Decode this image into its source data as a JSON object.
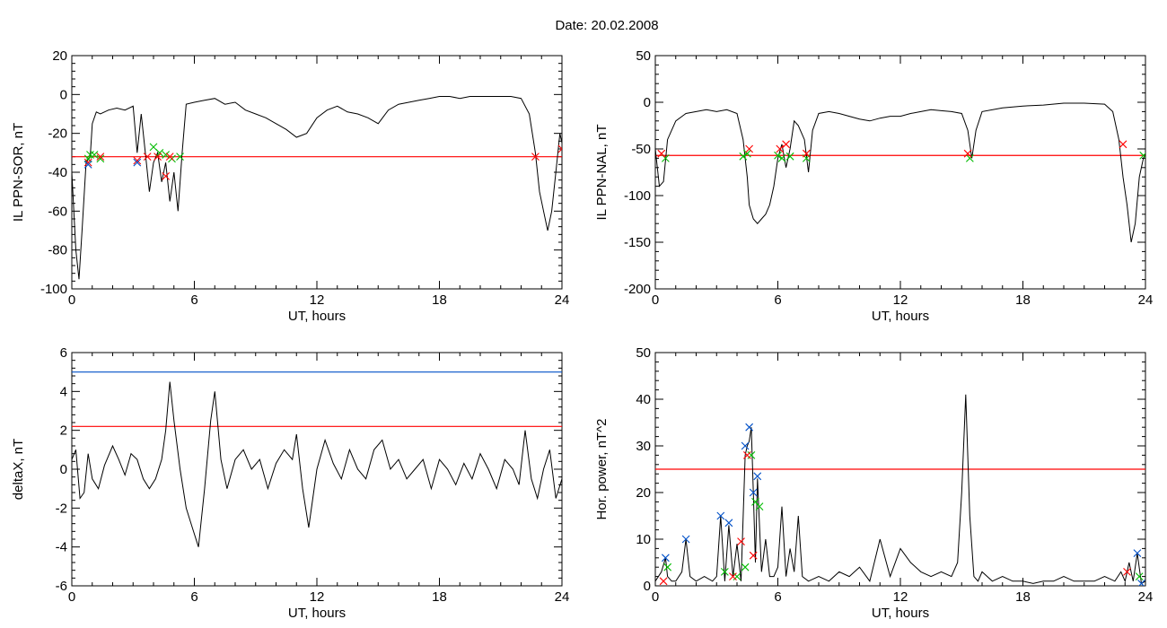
{
  "suptitle": "Date:  20.02.2008",
  "colors": {
    "trace": "#000000",
    "threshold_red": "#ff0000",
    "threshold_blue": "#0050c8",
    "marker_green": "#00bb00",
    "marker_red": "#ff0000",
    "marker_blue": "#0050c8"
  },
  "chart_data": [
    {
      "type": "line",
      "xlabel": "UT, hours",
      "ylabel": "IL PPN-SOR, nT",
      "xlim": [
        0,
        24
      ],
      "ylim": [
        -100,
        20
      ],
      "xticks": [
        0,
        6,
        12,
        18,
        24
      ],
      "yticks": [
        -100,
        -80,
        -60,
        -40,
        -20,
        0,
        20
      ],
      "grid": false,
      "thresholds": [
        {
          "y": -32,
          "color": "red"
        }
      ],
      "series": [
        {
          "x": [
            0,
            0.2,
            0.35,
            0.5,
            0.7,
            0.9,
            1.0,
            1.2,
            1.4,
            1.8,
            2.2,
            2.6,
            3.0,
            3.2,
            3.4,
            3.6,
            3.8,
            4.0,
            4.2,
            4.4,
            4.6,
            4.8,
            5.0,
            5.2,
            5.4,
            5.6,
            6.0,
            6.5,
            7.0,
            7.5,
            8.0,
            8.5,
            9.0,
            9.5,
            10.0,
            10.5,
            11.0,
            11.5,
            12.0,
            12.5,
            13.0,
            13.5,
            14.0,
            14.5,
            15.0,
            15.5,
            16.0,
            16.5,
            17.0,
            17.5,
            18.0,
            18.5,
            19.0,
            19.5,
            20.0,
            20.5,
            21.0,
            21.5,
            22.0,
            22.4,
            22.7,
            22.9,
            23.1,
            23.3,
            23.5,
            23.7,
            23.9,
            24.0
          ],
          "y": [
            -40,
            -80,
            -95,
            -70,
            -35,
            -32,
            -15,
            -9,
            -10,
            -8,
            -7,
            -8,
            -6,
            -30,
            -10,
            -30,
            -50,
            -35,
            -30,
            -45,
            -35,
            -55,
            -40,
            -60,
            -30,
            -5,
            -4,
            -3,
            -2,
            -5,
            -4,
            -8,
            -10,
            -12,
            -15,
            -18,
            -22,
            -20,
            -12,
            -8,
            -6,
            -9,
            -10,
            -12,
            -15,
            -8,
            -5,
            -4,
            -3,
            -2,
            -1,
            -1,
            -2,
            -1,
            -1,
            -1,
            -1,
            -1,
            -2,
            -10,
            -30,
            -50,
            -60,
            -70,
            -60,
            -40,
            -20,
            -25
          ]
        }
      ],
      "markers": [
        {
          "symbol": "x",
          "color": "green",
          "x": [
            0.8,
            0.9,
            1.1,
            1.4,
            4.0,
            4.3,
            4.6,
            4.9,
            5.3
          ],
          "y": [
            -33,
            -31,
            -31,
            -33,
            -27,
            -30,
            -31,
            -33,
            -32
          ]
        },
        {
          "symbol": "x",
          "color": "red",
          "x": [
            0.8,
            1.4,
            3.2,
            3.7,
            4.2,
            4.6,
            4.8,
            22.7,
            24.0
          ],
          "y": [
            -35,
            -32,
            -34,
            -32,
            -32,
            -42,
            -32,
            -32,
            -28
          ]
        },
        {
          "symbol": "x",
          "color": "blue",
          "x": [
            0.8,
            3.2
          ],
          "y": [
            -36,
            -35
          ]
        }
      ]
    },
    {
      "type": "line",
      "xlabel": "UT, hours",
      "ylabel": "IL PPN-NAL, nT",
      "xlim": [
        0,
        24
      ],
      "ylim": [
        -200,
        50
      ],
      "xticks": [
        0,
        6,
        12,
        18,
        24
      ],
      "yticks": [
        -200,
        -150,
        -100,
        -50,
        0,
        50
      ],
      "grid": false,
      "thresholds": [
        {
          "y": -57,
          "color": "red"
        }
      ],
      "series": [
        {
          "x": [
            0,
            0.2,
            0.4,
            0.6,
            0.8,
            1.0,
            1.5,
            2.0,
            2.5,
            3.0,
            3.5,
            4.0,
            4.3,
            4.5,
            4.6,
            4.8,
            5.0,
            5.2,
            5.4,
            5.6,
            5.8,
            6.0,
            6.2,
            6.4,
            6.6,
            6.8,
            7.0,
            7.3,
            7.5,
            7.7,
            8.0,
            8.5,
            9.0,
            9.5,
            10.0,
            10.5,
            11.0,
            11.5,
            12.0,
            12.5,
            13.0,
            13.5,
            14.0,
            14.5,
            15.0,
            15.3,
            15.5,
            15.7,
            16.0,
            17.0,
            18.0,
            19.0,
            20.0,
            21.0,
            22.0,
            22.4,
            22.7,
            22.9,
            23.1,
            23.3,
            23.5,
            23.7,
            23.9,
            24.0
          ],
          "y": [
            -50,
            -90,
            -85,
            -40,
            -30,
            -20,
            -12,
            -10,
            -8,
            -10,
            -8,
            -12,
            -40,
            -80,
            -110,
            -125,
            -130,
            -125,
            -120,
            -110,
            -90,
            -60,
            -45,
            -70,
            -50,
            -20,
            -25,
            -40,
            -75,
            -30,
            -12,
            -10,
            -12,
            -15,
            -18,
            -20,
            -17,
            -15,
            -15,
            -12,
            -10,
            -8,
            -9,
            -10,
            -12,
            -30,
            -60,
            -30,
            -10,
            -6,
            -4,
            -3,
            -1,
            -1,
            -2,
            -10,
            -40,
            -80,
            -110,
            -150,
            -130,
            -80,
            -60,
            -55
          ]
        }
      ],
      "markers": [
        {
          "symbol": "x",
          "color": "green",
          "x": [
            0.5,
            4.3,
            4.5,
            6.0,
            6.2,
            6.6,
            7.4,
            15.4,
            23.9
          ],
          "y": [
            -60,
            -58,
            -55,
            -57,
            -60,
            -58,
            -60,
            -60,
            -57
          ]
        },
        {
          "symbol": "x",
          "color": "red",
          "x": [
            0.3,
            4.6,
            6.1,
            6.4,
            7.4,
            15.3,
            22.9
          ],
          "y": [
            -55,
            -50,
            -50,
            -45,
            -55,
            -55,
            -45
          ]
        }
      ]
    },
    {
      "type": "line",
      "xlabel": "UT, hours",
      "ylabel": "deltaX, nT",
      "xlim": [
        0,
        24
      ],
      "ylim": [
        -6,
        6
      ],
      "xticks": [
        0,
        6,
        12,
        18,
        24
      ],
      "yticks": [
        -6,
        -4,
        -2,
        0,
        2,
        4,
        6
      ],
      "grid": false,
      "thresholds": [
        {
          "y": 5.0,
          "color": "blue"
        },
        {
          "y": 2.2,
          "color": "red"
        }
      ],
      "series": [
        {
          "x": [
            0,
            0.2,
            0.4,
            0.6,
            0.8,
            1.0,
            1.3,
            1.6,
            2.0,
            2.3,
            2.6,
            2.9,
            3.2,
            3.5,
            3.8,
            4.1,
            4.4,
            4.6,
            4.8,
            5.0,
            5.3,
            5.6,
            5.9,
            6.2,
            6.5,
            6.8,
            7.0,
            7.3,
            7.6,
            8.0,
            8.4,
            8.8,
            9.2,
            9.6,
            10.0,
            10.4,
            10.8,
            11.0,
            11.3,
            11.6,
            12.0,
            12.4,
            12.8,
            13.2,
            13.6,
            14.0,
            14.4,
            14.8,
            15.2,
            15.6,
            16.0,
            16.4,
            16.8,
            17.2,
            17.6,
            18.0,
            18.4,
            18.8,
            19.2,
            19.6,
            20.0,
            20.4,
            20.8,
            21.2,
            21.6,
            21.9,
            22.2,
            22.5,
            22.8,
            23.1,
            23.4,
            23.7,
            24.0
          ],
          "y": [
            0.5,
            1.0,
            -1.5,
            -1.2,
            0.8,
            -0.5,
            -1.0,
            0.2,
            1.2,
            0.5,
            -0.3,
            0.8,
            0.5,
            -0.5,
            -1.0,
            -0.5,
            0.5,
            2.0,
            4.5,
            2.5,
            0.0,
            -2.0,
            -3.0,
            -4.0,
            -1.0,
            2.5,
            4.0,
            0.5,
            -1.0,
            0.5,
            1.0,
            0.0,
            0.5,
            -1.0,
            0.3,
            1.0,
            0.5,
            1.8,
            -1.0,
            -3.0,
            0.0,
            1.5,
            0.3,
            -0.5,
            1.0,
            0.0,
            -0.5,
            1.0,
            1.5,
            0.0,
            0.5,
            -0.5,
            0.0,
            0.5,
            -1.0,
            0.5,
            0.0,
            -0.8,
            0.3,
            -0.5,
            0.8,
            0.0,
            -1.0,
            0.5,
            0.0,
            -0.8,
            2.0,
            -0.5,
            -1.5,
            0.0,
            1.0,
            -1.5,
            -0.5
          ]
        }
      ],
      "markers": []
    },
    {
      "type": "line",
      "xlabel": "UT, hours",
      "ylabel": "Hor. power, nT^2",
      "xlim": [
        0,
        24
      ],
      "ylim": [
        0,
        50
      ],
      "xticks": [
        0,
        6,
        12,
        18,
        24
      ],
      "yticks": [
        0,
        10,
        20,
        30,
        40,
        50
      ],
      "grid": false,
      "thresholds": [
        {
          "y": 25,
          "color": "red"
        }
      ],
      "series": [
        {
          "x": [
            0,
            0.3,
            0.5,
            0.6,
            0.8,
            1.0,
            1.3,
            1.5,
            1.7,
            2.0,
            2.4,
            2.8,
            3.0,
            3.2,
            3.4,
            3.6,
            3.8,
            4.0,
            4.2,
            4.4,
            4.5,
            4.6,
            4.7,
            4.8,
            4.9,
            5.0,
            5.2,
            5.4,
            5.6,
            5.8,
            6.0,
            6.2,
            6.4,
            6.6,
            6.8,
            7.0,
            7.2,
            7.5,
            8.0,
            8.5,
            9.0,
            9.5,
            10.0,
            10.5,
            11.0,
            11.5,
            12.0,
            12.5,
            13.0,
            13.5,
            14.0,
            14.5,
            14.8,
            15.0,
            15.2,
            15.4,
            15.6,
            15.8,
            16.0,
            16.5,
            17.0,
            17.5,
            18.0,
            18.5,
            19.0,
            19.5,
            20.0,
            20.5,
            21.0,
            21.5,
            22.0,
            22.5,
            22.8,
            23.0,
            23.2,
            23.4,
            23.6,
            23.8,
            24.0
          ],
          "y": [
            1,
            3,
            6,
            2,
            1,
            1,
            3,
            10,
            2,
            1,
            2,
            1,
            2,
            15,
            1,
            13,
            2,
            9,
            1,
            28,
            30,
            31,
            34,
            20,
            5,
            23,
            3,
            10,
            2,
            2,
            4,
            17,
            2,
            8,
            3,
            15,
            2,
            1,
            2,
            1,
            3,
            2,
            4,
            1,
            10,
            2,
            8,
            5,
            3,
            2,
            3,
            2,
            5,
            20,
            41,
            15,
            2,
            1,
            3,
            1,
            2,
            1,
            1,
            0.5,
            1,
            1,
            2,
            1,
            1,
            1,
            2,
            1,
            3,
            1,
            5,
            1,
            7,
            0.5,
            1
          ]
        }
      ],
      "markers": [
        {
          "symbol": "x",
          "color": "blue",
          "x": [
            0.5,
            1.5,
            3.2,
            3.6,
            4.4,
            4.6,
            4.8,
            5.0,
            23.6,
            23.8
          ],
          "y": [
            6,
            10,
            15,
            13.5,
            30,
            34,
            20,
            23.5,
            7,
            0.5
          ]
        },
        {
          "symbol": "x",
          "color": "green",
          "x": [
            0.6,
            3.4,
            4.0,
            4.4,
            4.7,
            4.9,
            5.1,
            23.7
          ],
          "y": [
            4,
            3,
            2,
            4,
            28,
            18,
            17,
            2
          ]
        },
        {
          "symbol": "x",
          "color": "red",
          "x": [
            0.4,
            3.8,
            4.2,
            4.5,
            4.8,
            23.1
          ],
          "y": [
            1,
            2,
            9.5,
            28,
            6.5,
            3
          ]
        }
      ]
    }
  ]
}
